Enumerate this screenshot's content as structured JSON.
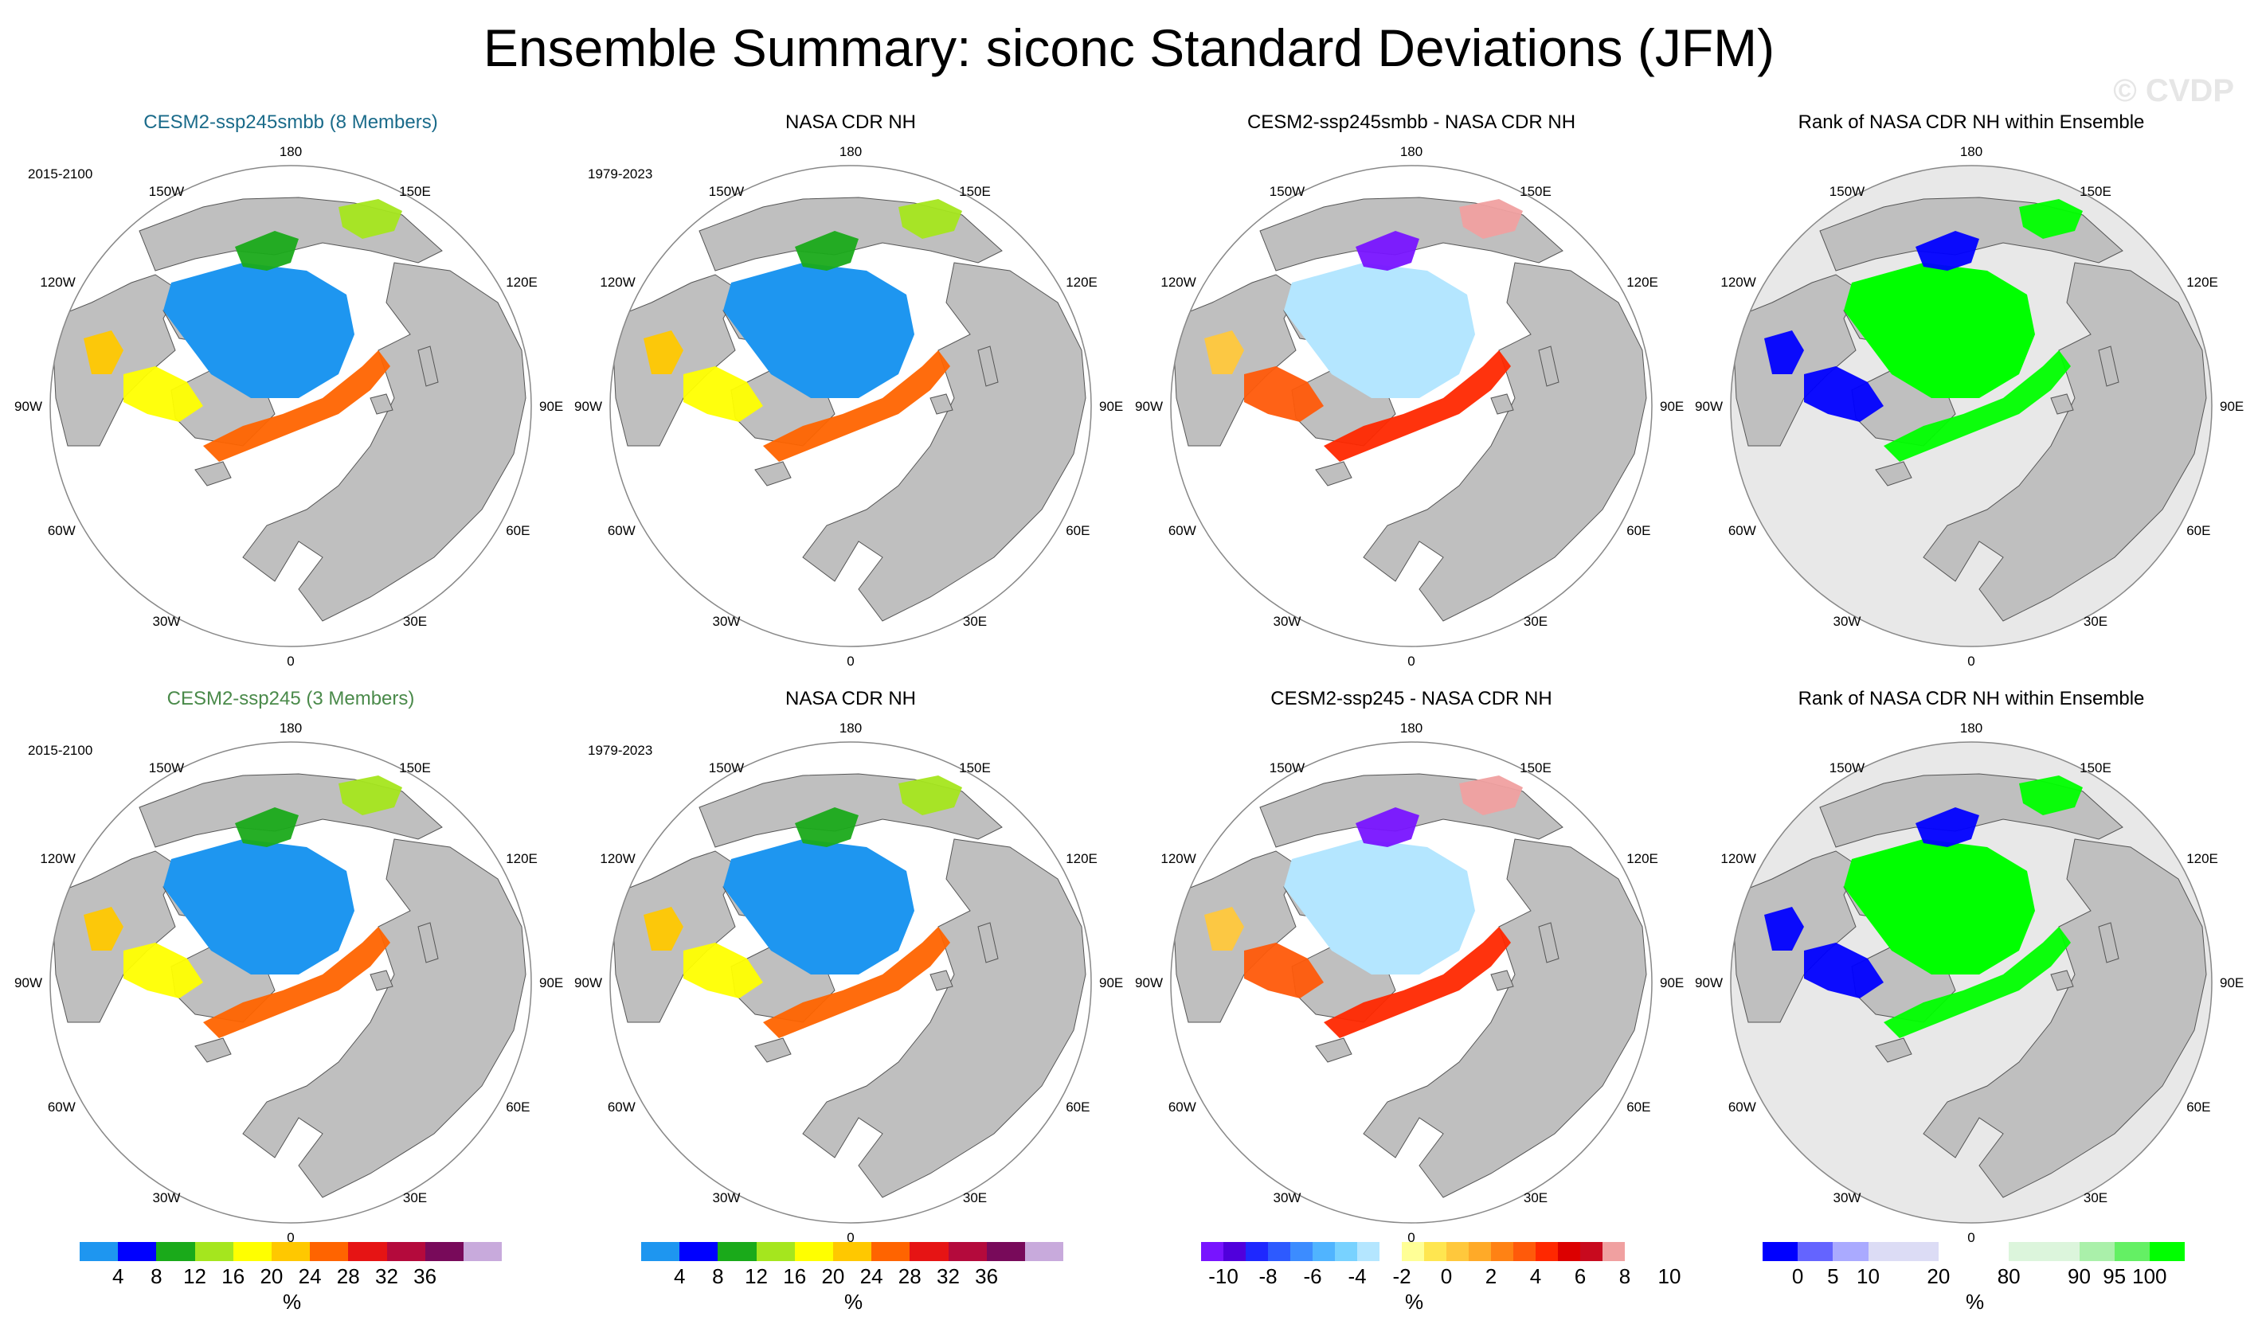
{
  "figure": {
    "title": "Ensemble Summary: siconc Standard Deviations (JFM)",
    "watermark": "© CVDP"
  },
  "lon_labels": [
    "180",
    "150E",
    "120E",
    "90E",
    "60E",
    "30E",
    "0",
    "30W",
    "60W",
    "90W",
    "120W",
    "150W"
  ],
  "panels": [
    {
      "title": "CESM2-ssp245smbb (8 Members)",
      "title_color": "#1a6b8a",
      "period": "2015-2100",
      "type": "std"
    },
    {
      "title": "NASA CDR NH",
      "title_color": "#000000",
      "period": "1979-2023",
      "type": "std"
    },
    {
      "title": "CESM2-ssp245smbb - NASA CDR NH",
      "title_color": "#000000",
      "period": "",
      "type": "diff"
    },
    {
      "title": "Rank of NASA CDR NH within Ensemble",
      "title_color": "#000000",
      "period": "",
      "type": "rank"
    },
    {
      "title": "CESM2-ssp245 (3 Members)",
      "title_color": "#4a8a4a",
      "period": "2015-2100",
      "type": "std"
    },
    {
      "title": "NASA CDR NH",
      "title_color": "#000000",
      "period": "1979-2023",
      "type": "std"
    },
    {
      "title": "CESM2-ssp245 - NASA CDR NH",
      "title_color": "#000000",
      "period": "",
      "type": "diff"
    },
    {
      "title": "Rank of NASA CDR NH within Ensemble",
      "title_color": "#000000",
      "period": "",
      "type": "rank"
    }
  ],
  "colorbars": [
    {
      "unit": "%",
      "colors": [
        "#1e96f0",
        "#0000ff",
        "#1aaa1a",
        "#a5e61e",
        "#ffff00",
        "#ffc800",
        "#ff6400",
        "#e61414",
        "#b40a3c",
        "#780a5a",
        "#c8aadc"
      ],
      "labels": [
        "4",
        "8",
        "12",
        "16",
        "20",
        "24",
        "28",
        "32",
        "36"
      ]
    },
    {
      "unit": "%",
      "colors": [
        "#1e96f0",
        "#0000ff",
        "#1aaa1a",
        "#a5e61e",
        "#ffff00",
        "#ffc800",
        "#ff6400",
        "#e61414",
        "#b40a3c",
        "#780a5a",
        "#c8aadc"
      ],
      "labels": [
        "4",
        "8",
        "12",
        "16",
        "20",
        "24",
        "28",
        "32",
        "36"
      ]
    },
    {
      "unit": "%",
      "colors": [
        "#7814ff",
        "#5000dc",
        "#1e28ff",
        "#2d5aff",
        "#3c8cff",
        "#50b4ff",
        "#78d2ff",
        "#b4e6ff",
        "#ffffff",
        "#ffff96",
        "#ffe650",
        "#ffc83c",
        "#ffaa28",
        "#ff8214",
        "#ff5a0a",
        "#ff2800",
        "#dc0000",
        "#c80a1e",
        "#f0a0a0"
      ],
      "labels": [
        "-10",
        "-8",
        "-6",
        "-4",
        "-2",
        "0",
        "2",
        "4",
        "6",
        "8",
        "10"
      ]
    },
    {
      "unit": "%",
      "colors": [
        "#0000ff",
        "#6464ff",
        "#aaaaff",
        "#dcdcf5",
        "#dcdcf5",
        "#ffffff",
        "#ffffff",
        "#dcf5dc",
        "#dcf5dc",
        "#aaf0aa",
        "#64f064",
        "#00ff00"
      ],
      "labels": [
        "0",
        "5",
        "10",
        "20",
        "80",
        "90",
        "95",
        "100"
      ]
    }
  ]
}
